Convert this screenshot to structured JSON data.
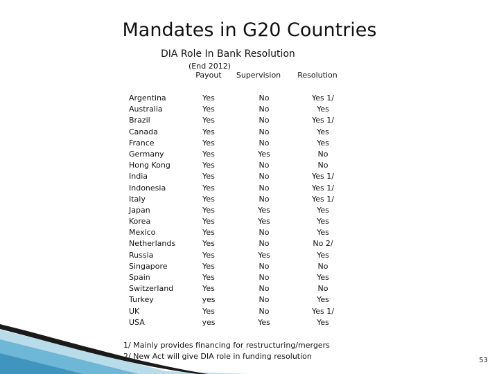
{
  "title": "Mandates in G20 Countries",
  "subtitle": "DIA Role In Bank  Resolution",
  "date_note": "(End 2012)",
  "columns": {
    "payout": "Payout",
    "supervision": "Supervision",
    "resolution": "Resolution"
  },
  "rows": [
    {
      "country": "Argentina",
      "payout": "Yes",
      "supervision": "No",
      "resolution": "Yes 1/"
    },
    {
      "country": "Australia",
      "payout": "Yes",
      "supervision": "No",
      "resolution": "Yes"
    },
    {
      "country": "Brazil",
      "payout": "Yes",
      "supervision": "No",
      "resolution": "Yes 1/"
    },
    {
      "country": "Canada",
      "payout": "Yes",
      "supervision": "No",
      "resolution": "Yes"
    },
    {
      "country": "France",
      "payout": "Yes",
      "supervision": "No",
      "resolution": "Yes"
    },
    {
      "country": "Germany",
      "payout": "Yes",
      "supervision": "Yes",
      "resolution": "No"
    },
    {
      "country": "Hong Kong",
      "payout": "Yes",
      "supervision": "No",
      "resolution": "No"
    },
    {
      "country": "India",
      "payout": "Yes",
      "supervision": "No",
      "resolution": "Yes 1/"
    },
    {
      "country": "Indonesia",
      "payout": "Yes",
      "supervision": "No",
      "resolution": "Yes 1/"
    },
    {
      "country": "Italy",
      "payout": "Yes",
      "supervision": "No",
      "resolution": "Yes 1/"
    },
    {
      "country": "Japan",
      "payout": "Yes",
      "supervision": "Yes",
      "resolution": "Yes"
    },
    {
      "country": "Korea",
      "payout": "Yes",
      "supervision": "Yes",
      "resolution": "Yes"
    },
    {
      "country": "Mexico",
      "payout": "Yes",
      "supervision": "No",
      "resolution": "Yes"
    },
    {
      "country": "Netherlands",
      "payout": "Yes",
      "supervision": "No",
      "resolution": "No 2/"
    },
    {
      "country": "Russia",
      "payout": "Yes",
      "supervision": "Yes",
      "resolution": "Yes"
    },
    {
      "country": "Singapore",
      "payout": "Yes",
      "supervision": "No",
      "resolution": "No"
    },
    {
      "country": "Spain",
      "payout": "Yes",
      "supervision": "No",
      "resolution": "Yes"
    },
    {
      "country": "Switzerland",
      "payout": "Yes",
      "supervision": "No",
      "resolution": "No"
    },
    {
      "country": "Turkey",
      "payout": "yes",
      "supervision": "No",
      "resolution": "Yes"
    },
    {
      "country": "UK",
      "payout": "Yes",
      "supervision": "No",
      "resolution": "Yes 1/"
    },
    {
      "country": "USA",
      "payout": "yes",
      "supervision": "Yes",
      "resolution": "Yes"
    }
  ],
  "footnotes": {
    "note1": "1/ Mainly provides financing for restructuring/mergers",
    "note2": "2/ New Act will give DIA role in funding resolution"
  },
  "page_number": "53",
  "colors": {
    "swoosh_dark": "#1a1a1a",
    "swoosh_blue": "#6fb7d6",
    "swoosh_light": "#b9dcea"
  }
}
